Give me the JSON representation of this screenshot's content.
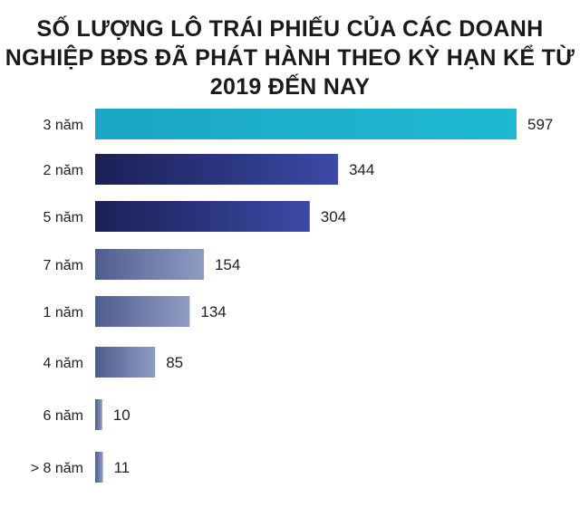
{
  "title_lines": [
    "SỐ LƯỢNG LÔ TRÁI PHIẾU CỦA CÁC DOANH",
    "NGHIỆP BĐS ĐÃ PHÁT HÀNH THEO KỲ HẠN KỂ TỪ",
    "2019 ĐẾN NAY"
  ],
  "chart_data": {
    "type": "bar",
    "orientation": "horizontal",
    "title": "SỐ LƯỢNG LÔ TRÁI PHIẾU CỦA CÁC DOANH NGHIỆP BĐS ĐÃ PHÁT HÀNH THEO KỲ HẠN KỂ TỪ 2019 ĐẾN NAY",
    "categories": [
      "3 năm",
      "2 năm",
      "5 năm",
      "7 năm",
      "1 năm",
      "4 năm",
      "6 năm",
      "> 8 năm"
    ],
    "values": [
      597,
      344,
      304,
      154,
      134,
      85,
      10,
      11
    ],
    "xlabel": "",
    "ylabel": "",
    "xlim": [
      0,
      597
    ],
    "grid": false,
    "data_labels": true,
    "colors": {
      "3 năm": [
        "#1aa6c4",
        "#1fb9d2"
      ],
      "2 năm": [
        "#1a1f55",
        "#3b4aa6"
      ],
      "5 năm": [
        "#1a1f55",
        "#3b4aa6"
      ],
      "7 năm": [
        "#4f5d8e",
        "#8f9cc2"
      ],
      "1 năm": [
        "#4f5d8e",
        "#8f9cc2"
      ],
      "4 năm": [
        "#4f5d8e",
        "#8f9cc2"
      ],
      "6 năm": [
        "#4f5d8e",
        "#8f9cc2"
      ],
      "> 8 năm": [
        "#4f5d8e",
        "#8f9cc2"
      ]
    }
  }
}
